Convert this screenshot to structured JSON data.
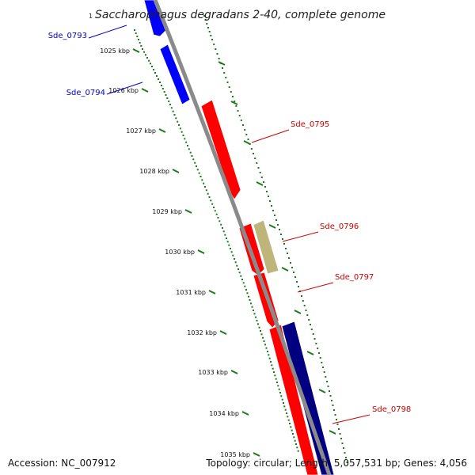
{
  "title": {
    "superscript": "1",
    "text": "Saccharophagus degradans 2-40, complete genome"
  },
  "colors": {
    "backbone": "#8a8a8a",
    "tick": "#1a7a1a",
    "blue": "#0000ff",
    "red": "#ff0000",
    "tan": "#bdb57a",
    "navy": "#000080",
    "label_blue": "#0000cc",
    "label_red": "#cc0000"
  },
  "ticks": [
    {
      "label": "1025 kbp"
    },
    {
      "label": "1026 kbp"
    },
    {
      "label": "1027 kbp"
    },
    {
      "label": "1028 kbp"
    },
    {
      "label": "1029 kbp"
    },
    {
      "label": "1030 kbp"
    },
    {
      "label": "1031 kbp"
    },
    {
      "label": "1032 kbp"
    },
    {
      "label": "1033 kbp"
    },
    {
      "label": "1034 kbp"
    },
    {
      "label": "1035 kbp"
    }
  ],
  "genes": [
    {
      "label": "Sde_0793",
      "color": "blue"
    },
    {
      "label": "Sde_0794",
      "color": "blue"
    },
    {
      "label": "Sde_0795",
      "color": "red"
    },
    {
      "label": "Sde_0796",
      "color": "tan"
    },
    {
      "label": "Sde_0797",
      "color": "red"
    },
    {
      "label": "Sde_0798",
      "color": "navy"
    }
  ],
  "footer": {
    "accession": "Accession: NC_007912",
    "summary": "Topology: circular; Length: 5,057,531 bp; Genes: 4,056"
  }
}
